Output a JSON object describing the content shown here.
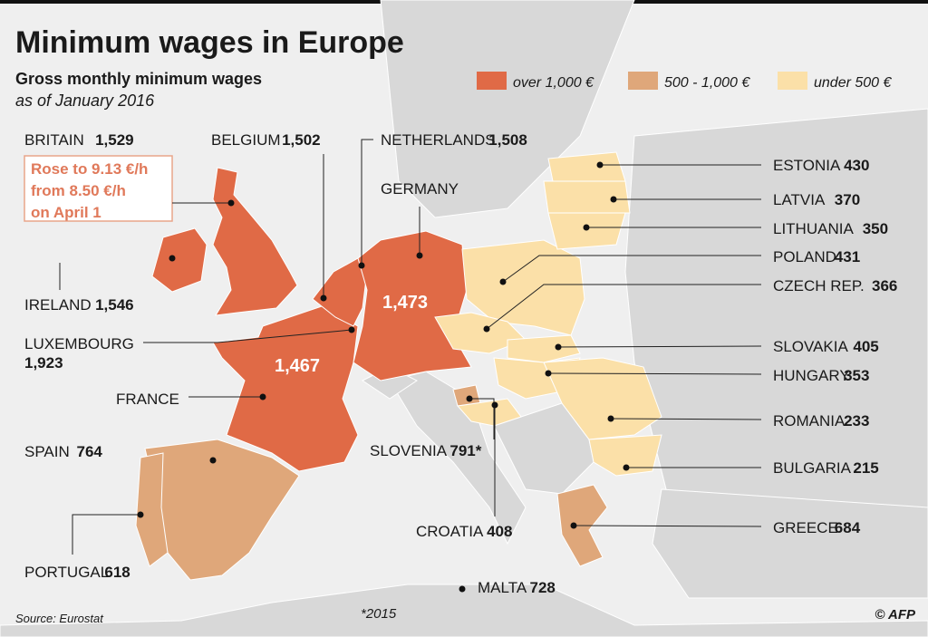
{
  "header": {
    "title": "Minimum wages in Europe",
    "subtitle": "Gross monthly minimum wages",
    "date": "as of January 2016"
  },
  "legend": [
    {
      "label": "over 1,000 €",
      "color": "#e06a46"
    },
    {
      "label": "500 - 1,000 €",
      "color": "#dfa77a"
    },
    {
      "label": "under 500 €",
      "color": "#fbe0a8"
    }
  ],
  "note": [
    "Rose to 9.13 €/h",
    "from 8.50 €/h",
    "on April 1"
  ],
  "countries": [
    {
      "name": "BRITAIN",
      "wage": "1,529"
    },
    {
      "name": "BELGIUM",
      "wage": "1,502"
    },
    {
      "name": "NETHERLANDS",
      "wage": "1,508"
    },
    {
      "name": "GERMANY",
      "wage": "1,473"
    },
    {
      "name": "IRELAND",
      "wage": "1,546"
    },
    {
      "name": "LUXEMBOURG",
      "wage": "1,923"
    },
    {
      "name": "FRANCE",
      "wage": "1,467"
    },
    {
      "name": "SPAIN",
      "wage": "764"
    },
    {
      "name": "PORTUGAL",
      "wage": "618"
    },
    {
      "name": "SLOVENIA",
      "wage": "791*"
    },
    {
      "name": "CROATIA",
      "wage": "408"
    },
    {
      "name": "MALTA",
      "wage": "728"
    },
    {
      "name": "ESTONIA",
      "wage": "430"
    },
    {
      "name": "LATVIA",
      "wage": "370"
    },
    {
      "name": "LITHUANIA",
      "wage": "350"
    },
    {
      "name": "POLAND",
      "wage": "431"
    },
    {
      "name": "CZECH REP.",
      "wage": "366"
    },
    {
      "name": "SLOVAKIA",
      "wage": "405"
    },
    {
      "name": "HUNGARY",
      "wage": "353"
    },
    {
      "name": "ROMANIA",
      "wage": "233"
    },
    {
      "name": "BULGARIA",
      "wage": "215"
    },
    {
      "name": "GREECE",
      "wage": "684"
    }
  ],
  "footnote": "*2015",
  "source": "Source: Eurostat",
  "credit": "© AFP"
}
